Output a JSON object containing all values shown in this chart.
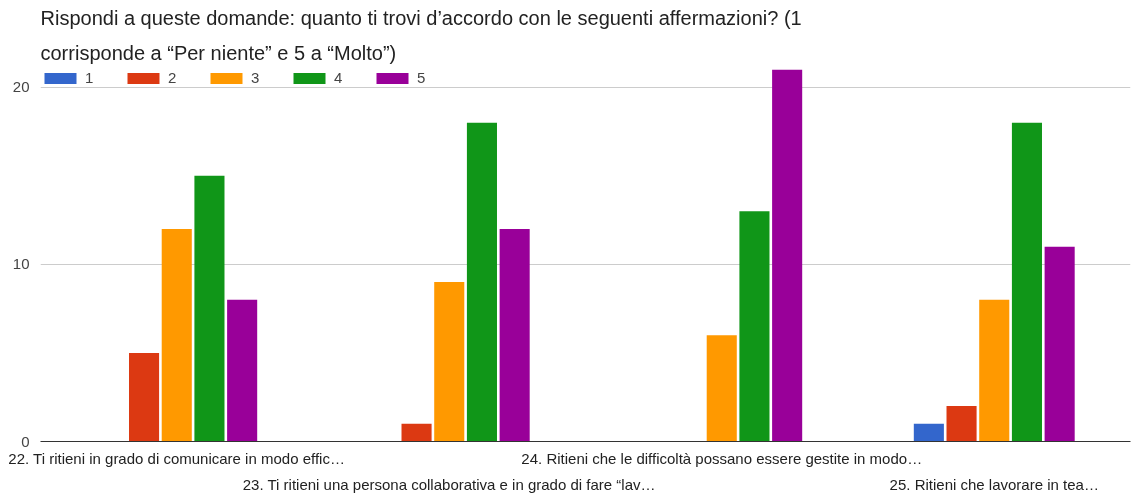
{
  "chart_data": {
    "type": "bar",
    "title": "Rispondi a queste domande: quanto ti trovi d’accordo con le seguenti affermazioni? (1 corrisponde a “Per niente” e 5 a “Molto”)",
    "categories": [
      "22. Ti ritieni in grado di comunicare in modo effic…",
      "23. Ti ritieni una persona collaborativa e in grado di fare “lav…",
      "24. Ritieni che le difficoltà possano essere gestite in modo…",
      "25. Ritieni che lavorare in tea…"
    ],
    "series": [
      {
        "name": "1",
        "color": "#3366cc",
        "values": [
          0,
          0,
          0,
          1
        ]
      },
      {
        "name": "2",
        "color": "#dc3912",
        "values": [
          5,
          1,
          0,
          2
        ]
      },
      {
        "name": "3",
        "color": "#ff9900",
        "values": [
          12,
          9,
          6,
          8
        ]
      },
      {
        "name": "4",
        "color": "#109618",
        "values": [
          15,
          18,
          13,
          18
        ]
      },
      {
        "name": "5",
        "color": "#990099",
        "values": [
          8,
          12,
          21,
          11
        ]
      }
    ],
    "ylim": [
      0,
      21
    ],
    "yticks": [
      0,
      10,
      20
    ],
    "grid": "y",
    "legend": "top left"
  }
}
